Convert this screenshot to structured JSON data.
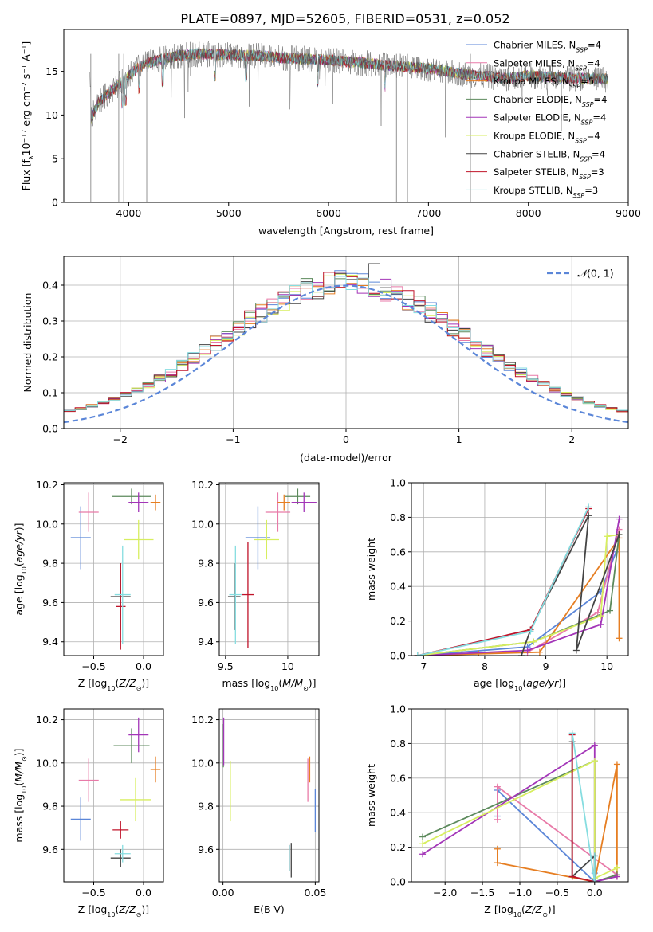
{
  "title": "PLATE=0897, MJD=52605, FIBERID=0531, z=0.052",
  "colors": {
    "Chabrier MILES": "#5b86d8",
    "Salpeter MILES": "#e87aa8",
    "Kroupa MILES": "#e67e22",
    "Chabrier ELODIE": "#5c8a5c",
    "Salpeter ELODIE": "#a335b8",
    "Kroupa ELODIE": "#d7ee5f",
    "Chabrier STELIB": "#444444",
    "Salpeter STELIB": "#c0142a",
    "Kroupa STELIB": "#86dde0"
  },
  "chart_data": [
    {
      "type": "line",
      "panel": "spectrum",
      "xlabel": "wavelength [Angstrom, rest frame]",
      "ylabel": "Flux [f_λ 10^-17 erg cm^-2 s^-1 A^-1]",
      "xlim": [
        3350,
        9000
      ],
      "ylim": [
        0,
        19.8
      ],
      "xticks": [
        4000,
        5000,
        6000,
        7000,
        8000,
        9000
      ],
      "yticks": [
        0,
        5,
        10,
        15
      ],
      "legend": "top-right",
      "series": [
        {
          "name": "Chabrier MILES, N_SSP=4"
        },
        {
          "name": "Salpeter MILES, N_SSP=4"
        },
        {
          "name": "Kroupa MILES, N_SSP=5"
        },
        {
          "name": "Chabrier ELODIE, N_SSP=4"
        },
        {
          "name": "Salpeter ELODIE, N_SSP=4"
        },
        {
          "name": "Kroupa ELODIE, N_SSP=4"
        },
        {
          "name": "Chabrier STELIB, N_SSP=4"
        },
        {
          "name": "Salpeter STELIB, N_SSP=3"
        },
        {
          "name": "Kroupa STELIB, N_SSP=3"
        }
      ],
      "continuum": {
        "x": [
          3620,
          3700,
          3800,
          3900,
          4000,
          4100,
          4200,
          4300,
          4500,
          4700,
          5000,
          5300,
          5600,
          6000,
          6500,
          7000,
          7300,
          7500,
          7800,
          8000,
          8300,
          8500,
          8800
        ],
        "y": [
          9.5,
          11.5,
          12.5,
          13.5,
          14.5,
          15.5,
          16.0,
          16.3,
          16.8,
          17.0,
          16.9,
          16.8,
          16.5,
          16.3,
          15.8,
          15.3,
          14.8,
          14.5,
          14.2,
          14.5,
          14.3,
          14.2,
          14.1
        ]
      }
    },
    {
      "type": "step",
      "panel": "residuals",
      "xlabel": "(data-model)/error",
      "ylabel": "Normed distribution",
      "xlim": [
        -2.5,
        2.5
      ],
      "ylim": [
        0,
        0.48
      ],
      "xticks": [
        -2,
        -1,
        0,
        1,
        2
      ],
      "yticks": [
        0.0,
        0.1,
        0.2,
        0.3,
        0.4
      ],
      "legend": "top-right",
      "legend_label": "N(0,1)",
      "grid": true,
      "bin_width": 0.1,
      "series": [
        {
          "name": "Chabrier STELIB",
          "values": [
            0.3,
            0.46,
            0.32,
            0.28
          ]
        },
        {
          "name": "Chabrier MILES",
          "values": [
            0.31,
            0.33,
            0.36,
            0.34
          ]
        }
      ]
    },
    {
      "type": "errorbar",
      "panel": "age-Z",
      "xlabel": "Z [log10(Z/Z⊙)]",
      "ylabel": "age [log10(age/yr)]",
      "xlim": [
        -0.8,
        0.2
      ],
      "ylim": [
        9.33,
        10.21
      ],
      "xticks": [
        -0.5,
        -0.0
      ],
      "xticklabels": [
        "−0.5",
        "0.0"
      ],
      "yticks": [
        9.4,
        9.6,
        9.8,
        10.0,
        10.2
      ],
      "grid": true,
      "points": [
        {
          "series": "Chabrier MILES",
          "x": -0.63,
          "y": 9.93,
          "xerr": 0.1,
          "yerr": 0.16
        },
        {
          "series": "Salpeter MILES",
          "x": -0.55,
          "y": 10.06,
          "xerr": 0.1,
          "yerr": 0.1
        },
        {
          "series": "Kroupa MILES",
          "x": 0.12,
          "y": 10.11,
          "xerr": 0.05,
          "yerr": 0.04
        },
        {
          "series": "Chabrier ELODIE",
          "x": -0.12,
          "y": 10.14,
          "xerr": 0.2,
          "yerr": 0.04
        },
        {
          "series": "Salpeter ELODIE",
          "x": -0.05,
          "y": 10.11,
          "xerr": 0.1,
          "yerr": 0.05
        },
        {
          "series": "Kroupa ELODIE",
          "x": -0.05,
          "y": 9.92,
          "xerr": 0.15,
          "yerr": 0.1
        },
        {
          "series": "Chabrier STELIB",
          "x": -0.23,
          "y": 9.63,
          "xerr": 0.1,
          "yerr": 0.17
        },
        {
          "series": "Salpeter STELIB",
          "x": -0.23,
          "y": 9.58,
          "xerr": 0.05,
          "yerr": 0.22
        },
        {
          "series": "Kroupa STELIB",
          "x": -0.21,
          "y": 9.64,
          "xerr": 0.08,
          "yerr": 0.25
        }
      ]
    },
    {
      "type": "errorbar",
      "panel": "age-mass",
      "xlabel": "mass [log10(M/M⊙)]",
      "xlim": [
        9.45,
        10.25
      ],
      "ylim": [
        9.33,
        10.21
      ],
      "xticks": [
        9.5,
        10.0
      ],
      "yticks": [
        9.4,
        9.6,
        9.8,
        10.0,
        10.2
      ],
      "grid": true,
      "points": [
        {
          "series": "Chabrier MILES",
          "x": 9.76,
          "y": 9.93,
          "xerr": 0.1,
          "yerr": 0.16
        },
        {
          "series": "Salpeter MILES",
          "x": 9.92,
          "y": 10.06,
          "xerr": 0.1,
          "yerr": 0.1
        },
        {
          "series": "Kroupa MILES",
          "x": 9.97,
          "y": 10.11,
          "xerr": 0.05,
          "yerr": 0.04
        },
        {
          "series": "Chabrier ELODIE",
          "x": 10.08,
          "y": 10.14,
          "xerr": 0.1,
          "yerr": 0.04
        },
        {
          "series": "Salpeter ELODIE",
          "x": 10.13,
          "y": 10.11,
          "xerr": 0.1,
          "yerr": 0.05
        },
        {
          "series": "Kroupa ELODIE",
          "x": 9.83,
          "y": 9.92,
          "xerr": 0.1,
          "yerr": 0.1
        },
        {
          "series": "Chabrier STELIB",
          "x": 9.57,
          "y": 9.63,
          "xerr": 0.05,
          "yerr": 0.17
        },
        {
          "series": "Salpeter STELIB",
          "x": 9.68,
          "y": 9.64,
          "xerr": 0.05,
          "yerr": 0.27
        },
        {
          "series": "Kroupa STELIB",
          "x": 9.58,
          "y": 9.64,
          "xerr": 0.05,
          "yerr": 0.25
        }
      ]
    },
    {
      "type": "line",
      "panel": "weight-age",
      "xlabel": "age [log10(age/yr)]",
      "ylabel": "mass weight",
      "xlim": [
        6.8,
        10.35
      ],
      "ylim": [
        0,
        1
      ],
      "xticks": [
        7,
        8,
        9,
        10
      ],
      "yticks": [
        0.0,
        0.2,
        0.4,
        0.6,
        0.8,
        1.0
      ],
      "grid": true,
      "series": [
        {
          "name": "Chabrier MILES",
          "x": [
            6.9,
            8.7,
            9.9,
            10.15
          ],
          "y": [
            0.0,
            0.05,
            0.37,
            0.6
          ]
        },
        {
          "name": "Salpeter MILES",
          "x": [
            6.9,
            8.7,
            9.85,
            10.2
          ],
          "y": [
            0.0,
            0.02,
            0.25,
            0.73
          ]
        },
        {
          "name": "Kroupa MILES",
          "x": [
            6.9,
            7.9,
            8.9,
            10.2,
            10.2
          ],
          "y": [
            0.0,
            0.01,
            0.02,
            0.68,
            0.1
          ]
        },
        {
          "name": "Chabrier ELODIE",
          "x": [
            6.9,
            8.8,
            10.05,
            10.2
          ],
          "y": [
            0.0,
            0.08,
            0.26,
            0.7
          ]
        },
        {
          "name": "Salpeter ELODIE",
          "x": [
            6.9,
            8.7,
            9.9,
            10.2
          ],
          "y": [
            0.0,
            0.03,
            0.18,
            0.79
          ]
        },
        {
          "name": "Kroupa ELODIE",
          "x": [
            6.9,
            8.8,
            9.9,
            10.0,
            10.2
          ],
          "y": [
            0.0,
            0.08,
            0.23,
            0.69,
            0.7
          ]
        },
        {
          "name": "Chabrier STELIB",
          "x": [
            8.6,
            8.75,
            9.7,
            9.5,
            10.2
          ],
          "y": [
            0.0,
            0.15,
            0.81,
            0.03,
            0.7
          ]
        },
        {
          "name": "Salpeter STELIB",
          "x": [
            6.9,
            8.75,
            9.7
          ],
          "y": [
            0.0,
            0.15,
            0.85
          ]
        },
        {
          "name": "Kroupa STELIB",
          "x": [
            6.9,
            8.75,
            9.7
          ],
          "y": [
            0.0,
            0.14,
            0.86
          ]
        }
      ]
    },
    {
      "type": "errorbar",
      "panel": "mass-Z",
      "xlabel": "Z [log10(Z/Z⊙)]",
      "ylabel": "mass [log10(M/M⊙)]",
      "xlim": [
        -0.8,
        0.2
      ],
      "ylim": [
        9.45,
        10.25
      ],
      "xticks": [
        -0.5,
        -0.0
      ],
      "xticklabels": [
        "−0.5",
        "0.0"
      ],
      "yticks": [
        9.6,
        9.8,
        10.0,
        10.2
      ],
      "grid": true,
      "points": [
        {
          "series": "Chabrier MILES",
          "x": -0.63,
          "y": 9.74,
          "xerr": 0.1,
          "yerr": 0.1
        },
        {
          "series": "Salpeter MILES",
          "x": -0.55,
          "y": 9.92,
          "xerr": 0.1,
          "yerr": 0.1
        },
        {
          "series": "Kroupa MILES",
          "x": 0.12,
          "y": 9.97,
          "xerr": 0.05,
          "yerr": 0.06
        },
        {
          "series": "Chabrier ELODIE",
          "x": -0.12,
          "y": 10.08,
          "xerr": 0.18,
          "yerr": 0.08
        },
        {
          "series": "Salpeter ELODIE",
          "x": -0.05,
          "y": 10.13,
          "xerr": 0.1,
          "yerr": 0.08
        },
        {
          "series": "Kroupa ELODIE",
          "x": -0.08,
          "y": 9.83,
          "xerr": 0.16,
          "yerr": 0.1
        },
        {
          "series": "Chabrier STELIB",
          "x": -0.23,
          "y": 9.56,
          "xerr": 0.1,
          "yerr": 0.04
        },
        {
          "series": "Salpeter STELIB",
          "x": -0.23,
          "y": 9.69,
          "xerr": 0.08,
          "yerr": 0.04
        },
        {
          "series": "Kroupa STELIB",
          "x": -0.21,
          "y": 9.58,
          "xerr": 0.08,
          "yerr": 0.04
        }
      ]
    },
    {
      "type": "errorbar",
      "panel": "mass-EBV",
      "xlabel": "E(B-V)",
      "xlim": [
        -0.002,
        0.052
      ],
      "ylim": [
        9.45,
        10.25
      ],
      "xticks": [
        0.0,
        0.05
      ],
      "xticklabels": [
        "0.00",
        "0.05"
      ],
      "yticks": [
        9.6,
        9.8,
        10.0,
        10.2
      ],
      "grid": true,
      "points": [
        {
          "series": "Chabrier MILES",
          "x": 0.05,
          "y": 9.78,
          "xerr": 0.0,
          "yerr": 0.1
        },
        {
          "series": "Salpeter MILES",
          "x": 0.046,
          "y": 9.92,
          "xerr": 0.0,
          "yerr": 0.1
        },
        {
          "series": "Kroupa MILES",
          "x": 0.047,
          "y": 9.97,
          "xerr": 0.0,
          "yerr": 0.06
        },
        {
          "series": "Chabrier ELODIE",
          "x": 0.0002,
          "y": 10.08,
          "xerr": 0.0,
          "yerr": 0.1
        },
        {
          "series": "Salpeter ELODIE",
          "x": 0.0004,
          "y": 10.1,
          "xerr": 0.0,
          "yerr": 0.11
        },
        {
          "series": "Kroupa ELODIE",
          "x": 0.004,
          "y": 9.87,
          "xerr": 0.0,
          "yerr": 0.14
        },
        {
          "series": "Chabrier STELIB",
          "x": 0.037,
          "y": 9.55,
          "xerr": 0.0,
          "yerr": 0.08
        },
        {
          "series": "Salpeter STELIB",
          "x": 0.036,
          "y": 9.56,
          "xerr": 0.0,
          "yerr": 0.06
        },
        {
          "series": "Kroupa STELIB",
          "x": 0.036,
          "y": 9.56,
          "xerr": 0.0,
          "yerr": 0.06
        }
      ]
    },
    {
      "type": "line",
      "panel": "weight-Z",
      "xlabel": "Z [log10(Z/Z⊙)]",
      "ylabel": "mass weight",
      "xlim": [
        -2.45,
        0.45
      ],
      "ylim": [
        0,
        1
      ],
      "xticks": [
        -2.0,
        -1.5,
        -1.0,
        -0.5,
        0.0
      ],
      "xticklabels": [
        "−2.0",
        "−1.5",
        "−1.0",
        "−0.5",
        "0.0"
      ],
      "yticks": [
        0.0,
        0.2,
        0.4,
        0.6,
        0.8,
        1.0
      ],
      "grid": true,
      "series": [
        {
          "name": "Chabrier MILES",
          "x": [
            -1.3,
            -1.3,
            0.0,
            0.0
          ],
          "y": [
            0.38,
            0.53,
            0.0,
            0.05
          ]
        },
        {
          "name": "Salpeter MILES",
          "x": [
            -1.3,
            -1.3,
            0.3,
            0.0
          ],
          "y": [
            0.36,
            0.55,
            0.04,
            0.0
          ]
        },
        {
          "name": "Kroupa MILES",
          "x": [
            -1.3,
            -1.3,
            0.0,
            0.3,
            0.3
          ],
          "y": [
            0.19,
            0.11,
            0.0,
            0.68,
            0.03
          ]
        },
        {
          "name": "Chabrier ELODIE",
          "x": [
            -2.3,
            0.0,
            0.0,
            0.3
          ],
          "y": [
            0.26,
            0.7,
            0.0,
            0.04
          ]
        },
        {
          "name": "Salpeter ELODIE",
          "x": [
            -2.3,
            0.0,
            0.0,
            0.3
          ],
          "y": [
            0.16,
            0.79,
            0.0,
            0.03
          ]
        },
        {
          "name": "Kroupa ELODIE",
          "x": [
            -2.3,
            0.0,
            0.0,
            0.3
          ],
          "y": [
            0.22,
            0.7,
            0.02,
            0.08
          ]
        },
        {
          "name": "Chabrier STELIB",
          "x": [
            -0.3,
            -0.3,
            0.0,
            0.0
          ],
          "y": [
            0.81,
            0.03,
            0.15,
            0.0
          ]
        },
        {
          "name": "Salpeter STELIB",
          "x": [
            -0.3,
            -0.3,
            0.0
          ],
          "y": [
            0.85,
            0.03,
            0.0
          ]
        },
        {
          "name": "Kroupa STELIB",
          "x": [
            -0.3,
            0.0,
            0.0
          ],
          "y": [
            0.86,
            0.0,
            0.15
          ]
        }
      ]
    }
  ]
}
